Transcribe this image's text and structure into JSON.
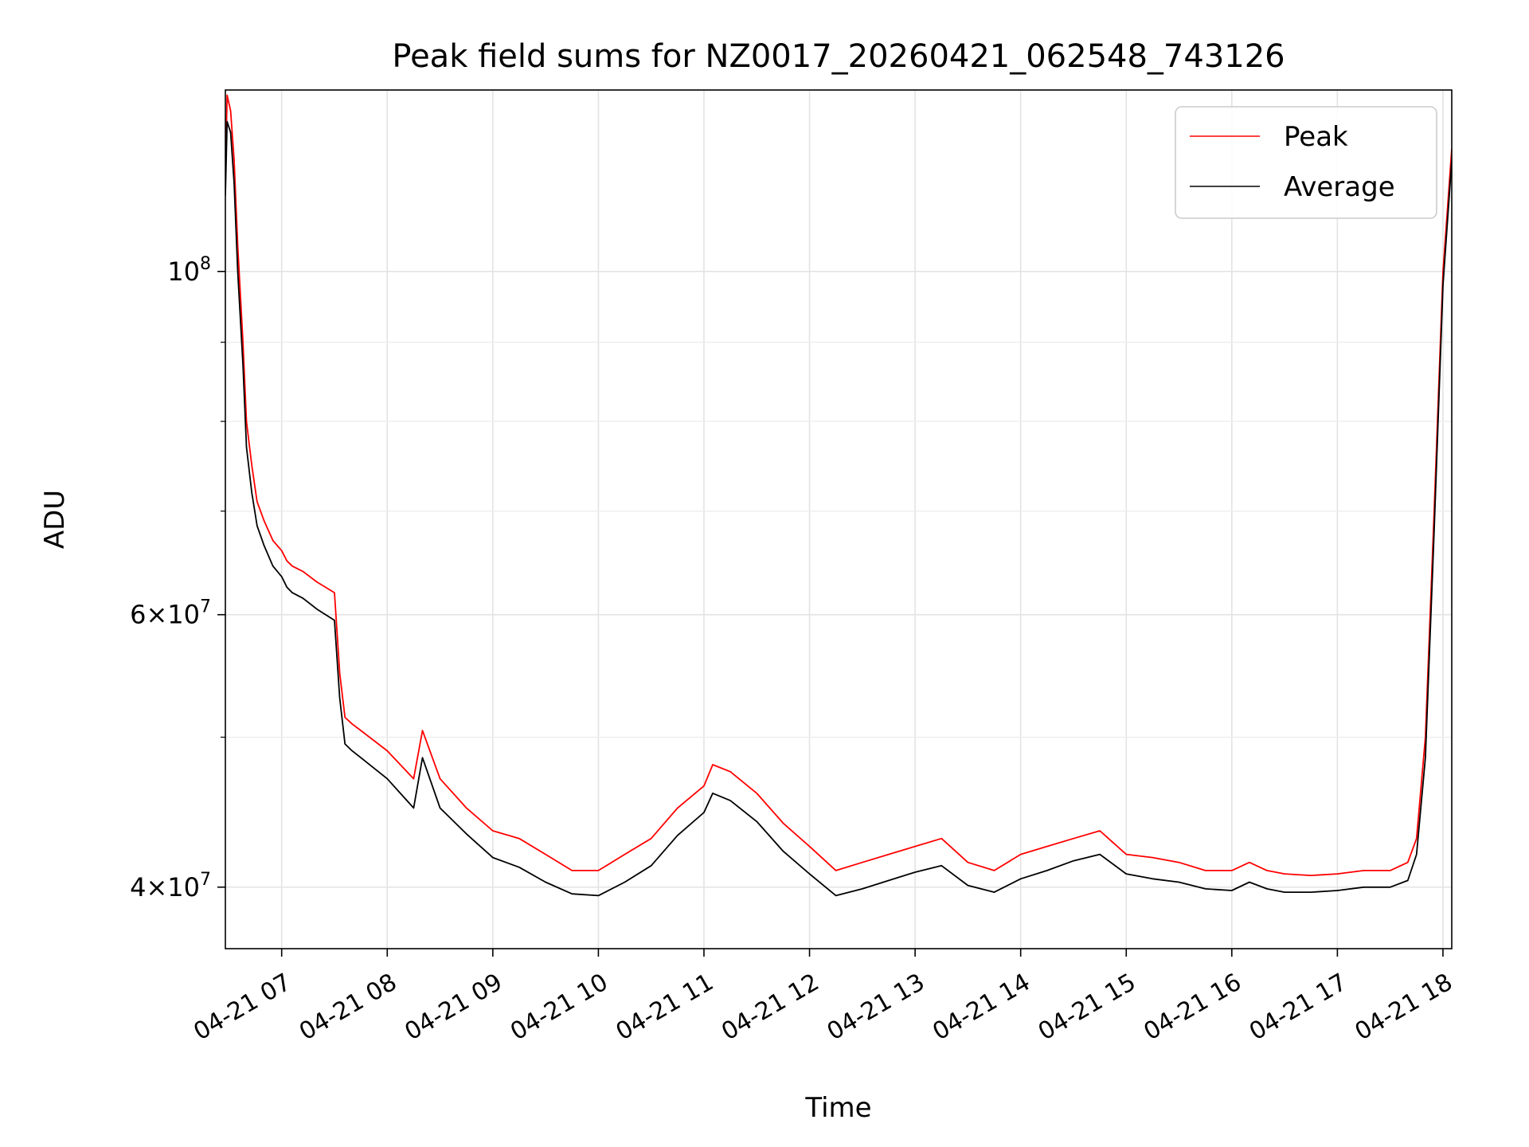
{
  "chart_data": {
    "type": "line",
    "title": "Peak field sums for NZ0017_20260421_062548_743126",
    "xlabel": "Time",
    "ylabel": "ADU",
    "yscale": "log",
    "grid": true,
    "legend_position": "upper-right",
    "xlim": [
      "2026-04-21 06:28",
      "2026-04-21 18:05"
    ],
    "ylim": [
      36500000,
      131000000
    ],
    "x_ticks": [
      {
        "value": "2026-04-21 07:00",
        "label": "04-21 07"
      },
      {
        "value": "2026-04-21 08:00",
        "label": "04-21 08"
      },
      {
        "value": "2026-04-21 09:00",
        "label": "04-21 09"
      },
      {
        "value": "2026-04-21 10:00",
        "label": "04-21 10"
      },
      {
        "value": "2026-04-21 11:00",
        "label": "04-21 11"
      },
      {
        "value": "2026-04-21 12:00",
        "label": "04-21 12"
      },
      {
        "value": "2026-04-21 13:00",
        "label": "04-21 13"
      },
      {
        "value": "2026-04-21 14:00",
        "label": "04-21 14"
      },
      {
        "value": "2026-04-21 15:00",
        "label": "04-21 15"
      },
      {
        "value": "2026-04-21 16:00",
        "label": "04-21 16"
      },
      {
        "value": "2026-04-21 17:00",
        "label": "04-21 17"
      },
      {
        "value": "2026-04-21 18:00",
        "label": "04-21 18"
      }
    ],
    "y_ticks_major": [
      {
        "value": 100000000,
        "base": "10",
        "exp": "8",
        "mant": ""
      },
      {
        "value": 60000000,
        "base": "10",
        "exp": "7",
        "mant": "6"
      },
      {
        "value": 40000000,
        "base": "10",
        "exp": "7",
        "mant": "4"
      }
    ],
    "y_ticks_minor": [
      50000000,
      70000000,
      80000000,
      90000000
    ],
    "series": [
      {
        "name": "Peak",
        "color": "#ff0000",
        "x": [
          "2026-04-21 06:28",
          "2026-04-21 06:29",
          "2026-04-21 06:31",
          "2026-04-21 06:33",
          "2026-04-21 06:35",
          "2026-04-21 06:38",
          "2026-04-21 06:40",
          "2026-04-21 06:43",
          "2026-04-21 06:46",
          "2026-04-21 06:50",
          "2026-04-21 06:55",
          "2026-04-21 07:00",
          "2026-04-21 07:03",
          "2026-04-21 07:06",
          "2026-04-21 07:12",
          "2026-04-21 07:20",
          "2026-04-21 07:30",
          "2026-04-21 07:33",
          "2026-04-21 07:36",
          "2026-04-21 07:40",
          "2026-04-21 07:45",
          "2026-04-21 08:00",
          "2026-04-21 08:15",
          "2026-04-21 08:20",
          "2026-04-21 08:30",
          "2026-04-21 08:45",
          "2026-04-21 09:00",
          "2026-04-21 09:15",
          "2026-04-21 09:30",
          "2026-04-21 09:45",
          "2026-04-21 10:00",
          "2026-04-21 10:15",
          "2026-04-21 10:30",
          "2026-04-21 10:45",
          "2026-04-21 11:00",
          "2026-04-21 11:05",
          "2026-04-21 11:15",
          "2026-04-21 11:30",
          "2026-04-21 11:45",
          "2026-04-21 12:00",
          "2026-04-21 12:15",
          "2026-04-21 12:30",
          "2026-04-21 12:45",
          "2026-04-21 13:00",
          "2026-04-21 13:15",
          "2026-04-21 13:30",
          "2026-04-21 13:45",
          "2026-04-21 14:00",
          "2026-04-21 14:15",
          "2026-04-21 14:30",
          "2026-04-21 14:45",
          "2026-04-21 15:00",
          "2026-04-21 15:15",
          "2026-04-21 15:30",
          "2026-04-21 15:45",
          "2026-04-21 16:00",
          "2026-04-21 16:10",
          "2026-04-21 16:20",
          "2026-04-21 16:30",
          "2026-04-21 16:45",
          "2026-04-21 17:00",
          "2026-04-21 17:15",
          "2026-04-21 17:30",
          "2026-04-21 17:40",
          "2026-04-21 17:45",
          "2026-04-21 17:50",
          "2026-04-21 17:55",
          "2026-04-21 18:00",
          "2026-04-21 18:05"
        ],
        "y": [
          115000000,
          130000000,
          127000000,
          118000000,
          104000000,
          90000000,
          80000000,
          75000000,
          71000000,
          69000000,
          67000000,
          66000000,
          65000000,
          64500000,
          64000000,
          63000000,
          62000000,
          55000000,
          51500000,
          51000000,
          50500000,
          49000000,
          47000000,
          50500000,
          47000000,
          45000000,
          43500000,
          43000000,
          42000000,
          41000000,
          41000000,
          42000000,
          43000000,
          45000000,
          46500000,
          48000000,
          47500000,
          46000000,
          44000000,
          42500000,
          41000000,
          41500000,
          42000000,
          42500000,
          43000000,
          41500000,
          41000000,
          42000000,
          42500000,
          43000000,
          43500000,
          42000000,
          41800000,
          41500000,
          41000000,
          41000000,
          41500000,
          41000000,
          40800000,
          40700000,
          40800000,
          41000000,
          41000000,
          41500000,
          43000000,
          50000000,
          70000000,
          100000000,
          120000000
        ]
      },
      {
        "name": "Average",
        "color": "#000000",
        "x": [
          "2026-04-21 06:28",
          "2026-04-21 06:29",
          "2026-04-21 06:31",
          "2026-04-21 06:33",
          "2026-04-21 06:35",
          "2026-04-21 06:38",
          "2026-04-21 06:40",
          "2026-04-21 06:43",
          "2026-04-21 06:46",
          "2026-04-21 06:50",
          "2026-04-21 06:55",
          "2026-04-21 07:00",
          "2026-04-21 07:03",
          "2026-04-21 07:06",
          "2026-04-21 07:12",
          "2026-04-21 07:20",
          "2026-04-21 07:30",
          "2026-04-21 07:33",
          "2026-04-21 07:36",
          "2026-04-21 07:40",
          "2026-04-21 07:45",
          "2026-04-21 08:00",
          "2026-04-21 08:15",
          "2026-04-21 08:20",
          "2026-04-21 08:30",
          "2026-04-21 08:45",
          "2026-04-21 09:00",
          "2026-04-21 09:15",
          "2026-04-21 09:30",
          "2026-04-21 09:45",
          "2026-04-21 10:00",
          "2026-04-21 10:15",
          "2026-04-21 10:30",
          "2026-04-21 10:45",
          "2026-04-21 11:00",
          "2026-04-21 11:05",
          "2026-04-21 11:15",
          "2026-04-21 11:30",
          "2026-04-21 11:45",
          "2026-04-21 12:00",
          "2026-04-21 12:15",
          "2026-04-21 12:30",
          "2026-04-21 12:45",
          "2026-04-21 13:00",
          "2026-04-21 13:15",
          "2026-04-21 13:30",
          "2026-04-21 13:45",
          "2026-04-21 14:00",
          "2026-04-21 14:15",
          "2026-04-21 14:30",
          "2026-04-21 14:45",
          "2026-04-21 15:00",
          "2026-04-21 15:15",
          "2026-04-21 15:30",
          "2026-04-21 15:45",
          "2026-04-21 16:00",
          "2026-04-21 16:10",
          "2026-04-21 16:20",
          "2026-04-21 16:30",
          "2026-04-21 16:45",
          "2026-04-21 17:00",
          "2026-04-21 17:15",
          "2026-04-21 17:30",
          "2026-04-21 17:40",
          "2026-04-21 17:45",
          "2026-04-21 17:50",
          "2026-04-21 17:55",
          "2026-04-21 18:00",
          "2026-04-21 18:05"
        ],
        "y": [
          112000000,
          125000000,
          123000000,
          114000000,
          100000000,
          87000000,
          77000000,
          72000000,
          68500000,
          66500000,
          64500000,
          63500000,
          62500000,
          62000000,
          61500000,
          60500000,
          59500000,
          53000000,
          49500000,
          49000000,
          48500000,
          47000000,
          45000000,
          48500000,
          45000000,
          43300000,
          41800000,
          41200000,
          40300000,
          39600000,
          39500000,
          40300000,
          41300000,
          43200000,
          44700000,
          46000000,
          45500000,
          44100000,
          42200000,
          40800000,
          39500000,
          39900000,
          40400000,
          40900000,
          41300000,
          40100000,
          39700000,
          40500000,
          41000000,
          41600000,
          42000000,
          40800000,
          40500000,
          40300000,
          39900000,
          39800000,
          40300000,
          39900000,
          39700000,
          39700000,
          39800000,
          40000000,
          40000000,
          40400000,
          42000000,
          48500000,
          68000000,
          98000000,
          118000000
        ]
      }
    ]
  }
}
